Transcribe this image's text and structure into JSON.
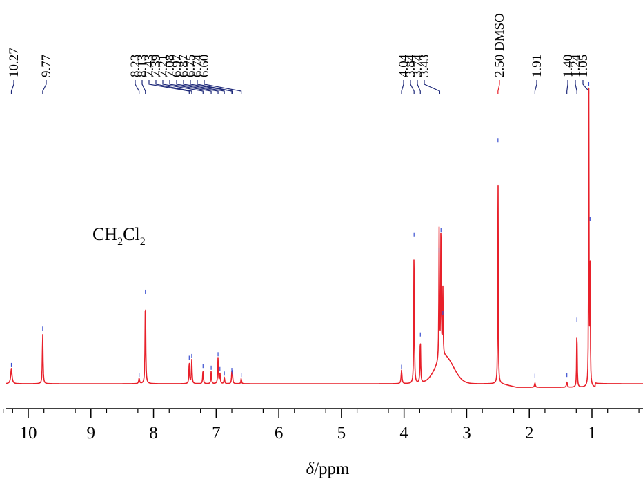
{
  "chart_data": {
    "type": "line",
    "xlabel_symbol": "δ",
    "xlabel_unit": "/ppm",
    "xlim": [
      10.4,
      0.2
    ],
    "x_ticks": [
      10,
      9,
      8,
      7,
      6,
      5,
      4,
      3,
      2,
      1
    ],
    "grid": false,
    "annotation_solvent": {
      "base": "CH",
      "sub1": "2",
      "mid": "Cl",
      "sub2": "2",
      "shift_ppm": 8.13
    },
    "peak_labels": [
      "10.27",
      "9.77",
      "8.23",
      "8.13",
      "7.43",
      "7.39",
      "7.21",
      "7.08",
      "6.97",
      "6.87",
      "6.75",
      "6.74",
      "6.60",
      "4.04",
      "3.84",
      "3.74",
      "3.43",
      "2.50 DMSO",
      "1.91",
      "1.40",
      "1.24",
      "1.05"
    ],
    "peak_label_shifts": [
      10.27,
      9.77,
      8.23,
      8.13,
      7.43,
      7.39,
      7.21,
      7.08,
      6.97,
      6.87,
      6.75,
      6.74,
      6.6,
      4.04,
      3.84,
      3.74,
      3.43,
      2.5,
      1.91,
      1.4,
      1.24,
      1.05
    ],
    "label_colors": {
      "normal": "#1f2a7a",
      "dmso": "#e8202a"
    },
    "series": [
      {
        "color": "#e8202a",
        "peaks": [
          {
            "ppm": 10.27,
            "height": 0.034,
            "width": 0.012
          },
          {
            "ppm": 9.77,
            "height": 0.115,
            "width": 0.006
          },
          {
            "ppm": 8.23,
            "height": 0.012,
            "width": 0.008
          },
          {
            "ppm": 8.13,
            "height": 0.197,
            "width": 0.006
          },
          {
            "ppm": 7.43,
            "height": 0.05,
            "width": 0.006
          },
          {
            "ppm": 7.39,
            "height": 0.054,
            "width": 0.006
          },
          {
            "ppm": 7.21,
            "height": 0.032,
            "width": 0.006
          },
          {
            "ppm": 7.08,
            "height": 0.028,
            "width": 0.006
          },
          {
            "ppm": 6.97,
            "height": 0.058,
            "width": 0.006
          },
          {
            "ppm": 6.94,
            "height": 0.025,
            "width": 0.006
          },
          {
            "ppm": 6.87,
            "height": 0.015,
            "width": 0.006
          },
          {
            "ppm": 6.75,
            "height": 0.023,
            "width": 0.006
          },
          {
            "ppm": 6.74,
            "height": 0.018,
            "width": 0.006
          },
          {
            "ppm": 6.6,
            "height": 0.012,
            "width": 0.006
          },
          {
            "ppm": 4.04,
            "height": 0.03,
            "width": 0.008
          },
          {
            "ppm": 3.84,
            "height": 0.325,
            "width": 0.005
          },
          {
            "ppm": 3.74,
            "height": 0.102,
            "width": 0.006
          },
          {
            "ppm": 3.44,
            "height": 0.29,
            "width": 0.005
          },
          {
            "ppm": 3.41,
            "height": 0.335,
            "width": 0.005
          },
          {
            "ppm": 3.38,
            "height": 0.15,
            "width": 0.005
          },
          {
            "ppm": 2.5,
            "height": 0.535,
            "width": 0.004
          },
          {
            "ppm": 1.91,
            "height": 0.01,
            "width": 0.008
          },
          {
            "ppm": 1.4,
            "height": 0.012,
            "width": 0.008
          },
          {
            "ppm": 1.24,
            "height": 0.135,
            "width": 0.005
          },
          {
            "ppm": 1.05,
            "height": 0.66,
            "width": 0.004
          },
          {
            "ppm": 1.03,
            "height": 0.36,
            "width": 0.004
          }
        ],
        "broad_hump": {
          "ppm": 3.35,
          "height": 0.06,
          "width": 0.2
        },
        "dmso_dip": {
          "ppm": 2.45,
          "depth": 0.008
        }
      }
    ]
  }
}
